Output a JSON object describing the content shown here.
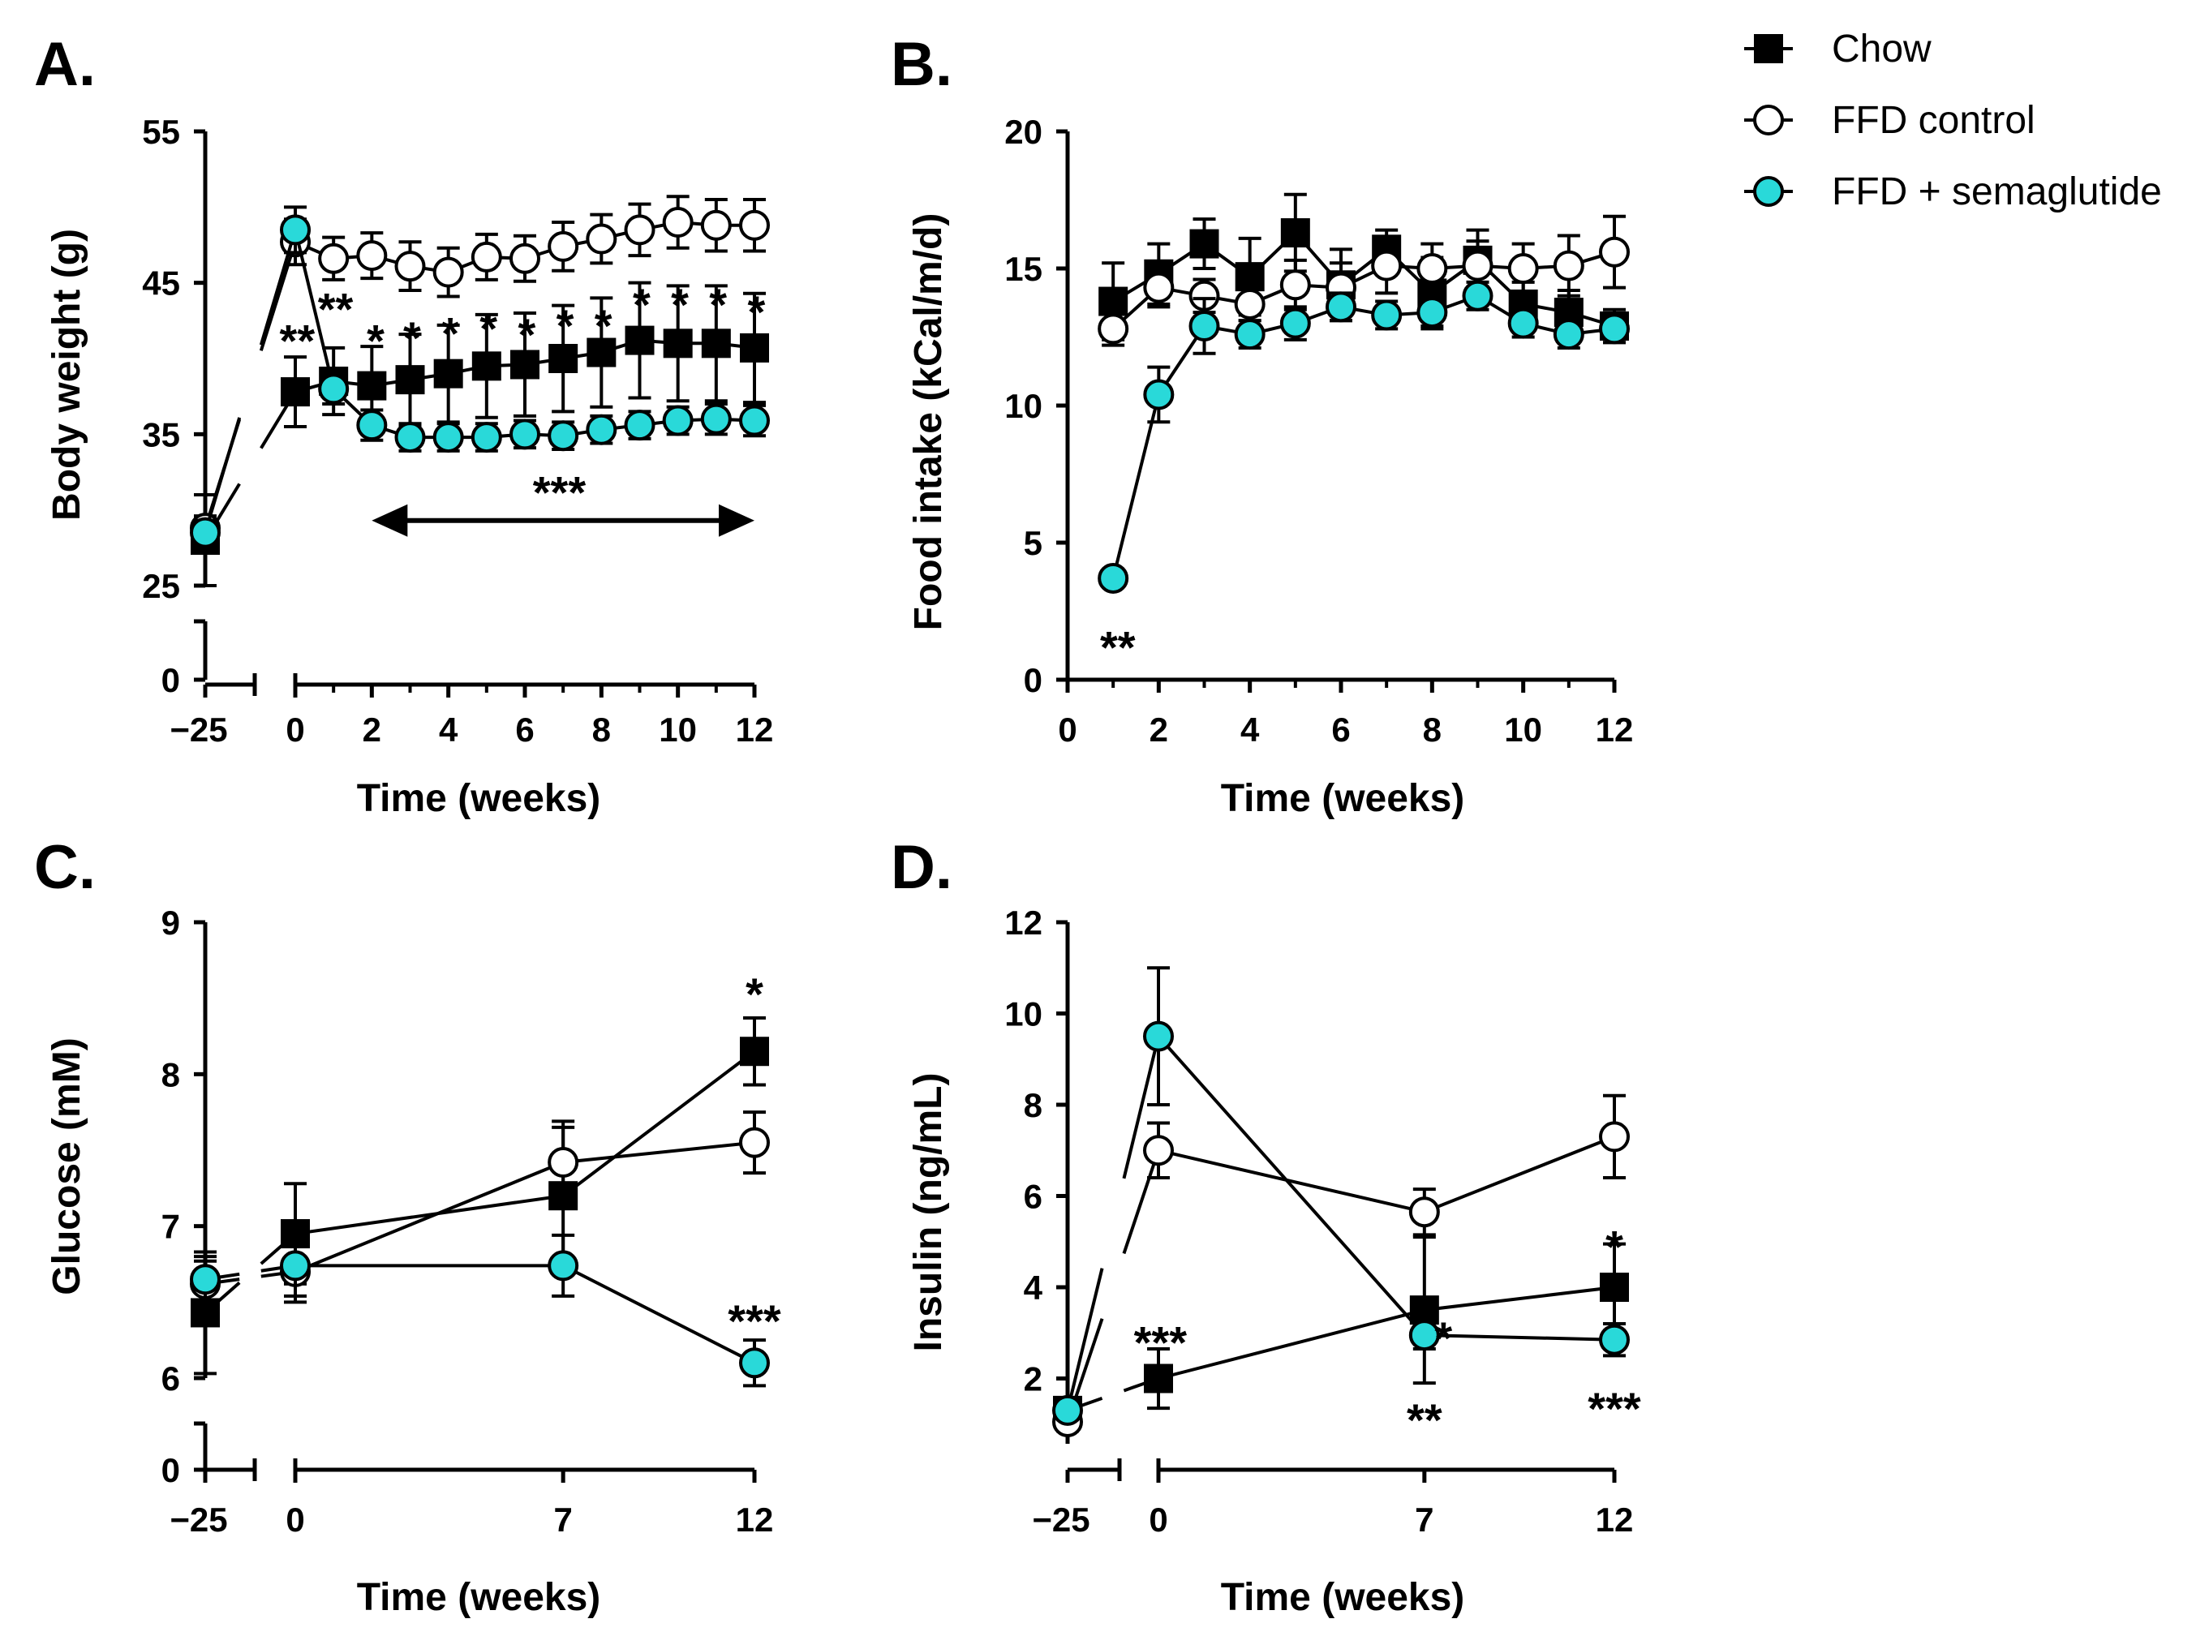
{
  "figure": {
    "legend": [
      {
        "label": "Chow",
        "marker": "square"
      },
      {
        "label": "FFD control",
        "marker": "circle-open"
      },
      {
        "label": "FFD + semaglutide",
        "marker": "circle-cyan"
      }
    ],
    "colors": {
      "chow": "#000000",
      "ffd_control": "#ffffff",
      "semaglutide": "#29d9d9",
      "axis": "#000000"
    }
  },
  "chart_data": [
    {
      "panel": "A.",
      "type": "line",
      "ylabel": "Body weight (g)",
      "xlabel": "Time (weeks)",
      "y_ticks": [
        "25",
        "35",
        "45",
        "55"
      ],
      "y_zero_label": "0",
      "y_range": [
        25,
        55
      ],
      "x_ticks": [
        "0",
        "2",
        "4",
        "6",
        "8",
        "10",
        "12"
      ],
      "x_baseline_label": "−25",
      "x_range": [
        0,
        12
      ],
      "x_baseline": -25,
      "series": [
        {
          "name": "Chow",
          "baseline": {
            "y": 28,
            "err": 3
          },
          "x": [
            0,
            1,
            2,
            3,
            4,
            5,
            6,
            7,
            8,
            9,
            10,
            11,
            12
          ],
          "y": [
            37.8,
            38.5,
            38.2,
            38.6,
            39.0,
            39.5,
            39.6,
            40.0,
            40.4,
            41.2,
            41.0,
            41.0,
            40.7
          ],
          "err": [
            2.3,
            2.2,
            2.6,
            3.0,
            3.2,
            3.4,
            3.4,
            3.5,
            3.6,
            3.8,
            3.8,
            3.8,
            3.6
          ]
        },
        {
          "name": "FFD control",
          "baseline": {
            "y": 28.8,
            "err": 0.8
          },
          "x": [
            0,
            1,
            2,
            3,
            4,
            5,
            6,
            7,
            8,
            9,
            10,
            11,
            12
          ],
          "y": [
            47.7,
            46.6,
            46.8,
            46.1,
            45.7,
            46.7,
            46.6,
            47.4,
            47.9,
            48.5,
            49.0,
            48.8,
            48.8
          ],
          "err": [
            1.5,
            1.4,
            1.5,
            1.6,
            1.6,
            1.5,
            1.5,
            1.6,
            1.6,
            1.7,
            1.7,
            1.7,
            1.7
          ]
        },
        {
          "name": "FFD + semaglutide",
          "baseline": {
            "y": 28.5,
            "err": 0.8
          },
          "x": [
            0,
            1,
            2,
            3,
            4,
            5,
            6,
            7,
            8,
            9,
            10,
            11,
            12
          ],
          "y": [
            48.5,
            38.0,
            35.6,
            34.8,
            34.8,
            34.8,
            35.0,
            34.9,
            35.3,
            35.6,
            35.9,
            36.0,
            35.9
          ],
          "err": [
            1.5,
            1.0,
            1.0,
            0.9,
            0.9,
            0.9,
            0.9,
            0.9,
            0.9,
            0.9,
            0.9,
            1.0,
            1.0
          ]
        }
      ],
      "annotations": [
        {
          "text": "**",
          "x": 0.05,
          "y": 41.2
        },
        {
          "text": "**",
          "x": 1.05,
          "y": 43.3
        },
        {
          "text": "*",
          "x": 2.1,
          "y": 41.2
        },
        {
          "text": "*",
          "x": 3.05,
          "y": 41.4
        },
        {
          "text": "*",
          "x": 4.05,
          "y": 41.7
        },
        {
          "text": "*",
          "x": 5.05,
          "y": 42.0
        },
        {
          "text": "*",
          "x": 6.05,
          "y": 41.6
        },
        {
          "text": "*",
          "x": 7.05,
          "y": 42.2
        },
        {
          "text": "*",
          "x": 8.05,
          "y": 42.2
        },
        {
          "text": "*",
          "x": 9.05,
          "y": 43.6
        },
        {
          "text": "*",
          "x": 10.05,
          "y": 43.6
        },
        {
          "text": "*",
          "x": 11.05,
          "y": 43.6
        },
        {
          "text": "*",
          "x": 12.05,
          "y": 43.1
        },
        {
          "text": "***",
          "x": 6.9,
          "y": 31.2
        }
      ],
      "double_arrow": {
        "x_start": 2,
        "x_end": 12,
        "y": 29.3
      }
    },
    {
      "panel": "B.",
      "type": "line",
      "ylabel": "Food intake (kCal/m/d)",
      "xlabel": "Time (weeks)",
      "y_ticks": [
        "0",
        "5",
        "10",
        "15",
        "20"
      ],
      "y_range": [
        0,
        20
      ],
      "x_ticks": [
        "0",
        "2",
        "4",
        "6",
        "8",
        "10",
        "12"
      ],
      "x_range": [
        0,
        12
      ],
      "series": [
        {
          "name": "Chow",
          "x": [
            1,
            2,
            3,
            4,
            5,
            6,
            7,
            8,
            9,
            10,
            11,
            12
          ],
          "y": [
            13.8,
            14.8,
            15.9,
            14.7,
            16.3,
            14.4,
            15.7,
            14.1,
            15.3,
            13.7,
            13.4,
            12.9
          ],
          "err": [
            1.4,
            1.1,
            0.9,
            1.4,
            1.4,
            1.3,
            0.7,
            1.3,
            1.1,
            0.8,
            0.8,
            0.6
          ]
        },
        {
          "name": "FFD control",
          "x": [
            1,
            2,
            3,
            4,
            5,
            6,
            7,
            8,
            9,
            10,
            11,
            12
          ],
          "y": [
            12.8,
            14.3,
            14.0,
            13.7,
            14.4,
            14.3,
            15.1,
            15.0,
            15.1,
            15.0,
            15.1,
            15.6
          ],
          "err": [
            0.6,
            0.7,
            0.6,
            0.6,
            0.9,
            0.9,
            1.0,
            0.9,
            0.9,
            0.9,
            1.1,
            1.3
          ]
        },
        {
          "name": "FFD + semaglutide",
          "x": [
            1,
            2,
            3,
            4,
            5,
            6,
            7,
            8,
            9,
            10,
            11,
            12
          ],
          "y": [
            3.7,
            10.4,
            12.9,
            12.6,
            13.0,
            13.6,
            13.3,
            13.4,
            14.0,
            13.0,
            12.6,
            12.8
          ],
          "err": [
            0.3,
            1.0,
            1.0,
            0.5,
            0.6,
            0.5,
            0.5,
            0.5,
            0.5,
            0.5,
            0.5,
            0.5
          ]
        }
      ],
      "annotations": [
        {
          "text": "**",
          "x": 1.1,
          "y": 1.2
        }
      ]
    },
    {
      "panel": "C.",
      "type": "line",
      "ylabel": "Glucose (mM)",
      "xlabel": "Time (weeks)",
      "y_ticks": [
        "6",
        "7",
        "8",
        "9"
      ],
      "y_zero_label": "0",
      "y_range": [
        6,
        9
      ],
      "x_ticks": [
        "0",
        "7",
        "12"
      ],
      "x_baseline_label": "−25",
      "x_range": [
        0,
        12
      ],
      "x_baseline": -25,
      "series": [
        {
          "name": "Chow",
          "baseline": {
            "y": 6.43,
            "err": 0.4
          },
          "x": [
            0,
            7,
            12
          ],
          "y": [
            6.95,
            7.2,
            8.15
          ],
          "err": [
            0.33,
            0.45,
            0.22
          ]
        },
        {
          "name": "FFD control",
          "baseline": {
            "y": 6.62,
            "err": 0.15
          },
          "x": [
            0,
            7,
            12
          ],
          "y": [
            6.7,
            7.42,
            7.55
          ],
          "err": [
            0.2,
            0.27,
            0.2
          ]
        },
        {
          "name": "FFD + semaglutide",
          "baseline": {
            "y": 6.65,
            "err": 0.15
          },
          "x": [
            0,
            7,
            12
          ],
          "y": [
            6.74,
            6.74,
            6.1
          ],
          "err": [
            0.2,
            0.2,
            0.15
          ]
        }
      ],
      "annotations": [
        {
          "text": "*",
          "x": 12,
          "y": 8.53
        },
        {
          "text": "***",
          "x": 12,
          "y": 6.38
        }
      ]
    },
    {
      "panel": "D.",
      "type": "line",
      "ylabel": "Insulin (ng/mL)",
      "xlabel": "Time (weeks)",
      "y_ticks": [
        "2",
        "4",
        "6",
        "8",
        "10",
        "12"
      ],
      "y_range": [
        0,
        12
      ],
      "x_ticks": [
        "0",
        "7",
        "12"
      ],
      "x_baseline_label": "−25",
      "x_range": [
        0,
        12
      ],
      "x_baseline": -25,
      "series": [
        {
          "name": "Chow",
          "baseline": {
            "y": 1.3,
            "err": 0.2
          },
          "x": [
            0,
            7,
            12
          ],
          "y": [
            2.0,
            3.5,
            4.0
          ],
          "err": [
            0.65,
            1.6,
            0.95
          ]
        },
        {
          "name": "FFD control",
          "baseline": {
            "y": 1.05,
            "err": 0.2
          },
          "x": [
            0,
            7,
            12
          ],
          "y": [
            7.0,
            5.65,
            7.3
          ],
          "err": [
            0.6,
            0.5,
            0.9
          ]
        },
        {
          "name": "FFD + semaglutide",
          "baseline": {
            "y": 1.3,
            "err": 0.2
          },
          "x": [
            0,
            7,
            12
          ],
          "y": [
            9.5,
            2.95,
            2.85
          ],
          "err": [
            1.5,
            0.3,
            0.35
          ]
        }
      ],
      "annotations": [
        {
          "text": "***",
          "x": 0.05,
          "y": 2.8
        },
        {
          "text": "*",
          "x": 7.5,
          "y": 2.9
        },
        {
          "text": "**",
          "x": 7.0,
          "y": 1.1
        },
        {
          "text": "*",
          "x": 12.0,
          "y": 4.9
        },
        {
          "text": "***",
          "x": 12.0,
          "y": 1.35
        }
      ]
    }
  ]
}
